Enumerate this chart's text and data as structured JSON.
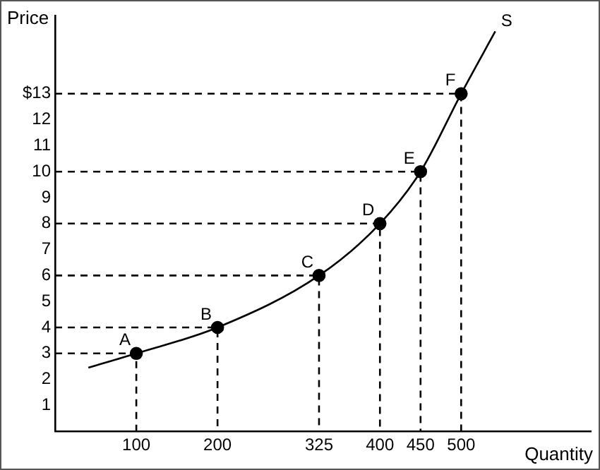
{
  "chart_data": {
    "type": "line",
    "xlabel": "Quantity",
    "ylabel": "Price",
    "xlim": [
      0,
      660
    ],
    "ylim": [
      0,
      16
    ],
    "xticks": [
      100,
      200,
      325,
      400,
      450,
      500
    ],
    "yticks": [
      1,
      2,
      3,
      4,
      5,
      6,
      7,
      8,
      9,
      10,
      11,
      12,
      {
        "value": 13,
        "label": "$13"
      }
    ],
    "grid": false,
    "legend": false,
    "series": [
      {
        "name": "S",
        "marker": "none",
        "line_style": "solid",
        "color": "#000000",
        "x": [
          41,
          100,
          200,
          325,
          400,
          450,
          500,
          542
        ],
        "values": [
          2.45,
          3,
          4,
          6,
          8,
          10,
          13,
          15.4
        ]
      },
      {
        "type": "line",
        "marker": "none",
        "line_style": "dashed",
        "color": "#000000",
        "x": [
          0,
          100,
          100
        ],
        "values": [
          3,
          3,
          0
        ]
      },
      {
        "type": "line",
        "marker": "none",
        "line_style": "dashed",
        "color": "#000000",
        "x": [
          0,
          200,
          200
        ],
        "values": [
          4,
          4,
          0
        ]
      },
      {
        "type": "line",
        "marker": "none",
        "line_style": "dashed",
        "color": "#000000",
        "x": [
          0,
          325,
          325
        ],
        "values": [
          6,
          6,
          0
        ]
      },
      {
        "type": "line",
        "marker": "none",
        "line_style": "dashed",
        "color": "#000000",
        "x": [
          0,
          400,
          400
        ],
        "values": [
          8,
          8,
          0
        ]
      },
      {
        "type": "line",
        "marker": "none",
        "line_style": "dashed",
        "color": "#000000",
        "x": [
          0,
          450,
          450
        ],
        "values": [
          10,
          10,
          0
        ]
      },
      {
        "type": "line",
        "marker": "none",
        "line_style": "dashed",
        "color": "#000000",
        "x": [
          0,
          500,
          500
        ],
        "values": [
          13,
          13,
          0
        ]
      },
      {
        "type": "scatter",
        "marker": "circle",
        "color": "#000000",
        "x": [
          100,
          200,
          325,
          400,
          450,
          500
        ],
        "values": [
          3,
          4,
          6,
          8,
          10,
          13
        ]
      }
    ],
    "annotations": [
      {
        "text": "A",
        "x": 100,
        "y": 3
      },
      {
        "text": "B",
        "x": 200,
        "y": 4
      },
      {
        "text": "C",
        "x": 325,
        "y": 6
      },
      {
        "text": "D",
        "x": 400,
        "y": 8
      },
      {
        "text": "E",
        "x": 450,
        "y": 10
      },
      {
        "text": "F",
        "x": 500,
        "y": 13
      }
    ]
  }
}
